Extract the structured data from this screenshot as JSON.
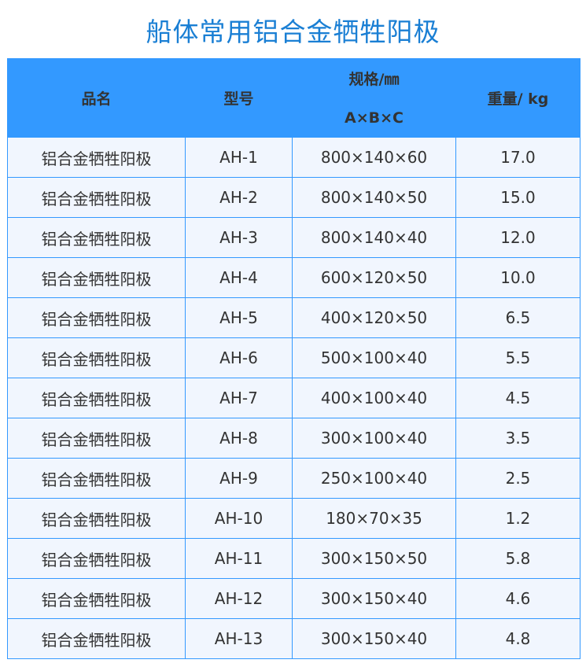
{
  "title": "船体常用铝合金牺牲阳极",
  "headers": {
    "name": "品名",
    "model": "型号",
    "spec": "规格/㎜",
    "spec_sub": "A×B×C",
    "weight": "重量/ kg"
  },
  "rows": [
    {
      "name": "铝合金牺牲阳极",
      "model": "AH-1",
      "spec": "800×140×60",
      "weight": "17.0"
    },
    {
      "name": "铝合金牺牲阳极",
      "model": "AH-2",
      "spec": "800×140×50",
      "weight": "15.0"
    },
    {
      "name": "铝合金牺牲阳极",
      "model": "AH-3",
      "spec": "800×140×40",
      "weight": "12.0"
    },
    {
      "name": "铝合金牺牲阳极",
      "model": "AH-4",
      "spec": "600×120×50",
      "weight": "10.0"
    },
    {
      "name": "铝合金牺牲阳极",
      "model": "AH-5",
      "spec": "400×120×50",
      "weight": "6.5"
    },
    {
      "name": "铝合金牺牲阳极",
      "model": "AH-6",
      "spec": "500×100×40",
      "weight": "5.5"
    },
    {
      "name": "铝合金牺牲阳极",
      "model": "AH-7",
      "spec": "400×100×40",
      "weight": "4.5"
    },
    {
      "name": "铝合金牺牲阳极",
      "model": "AH-8",
      "spec": "300×100×40",
      "weight": "3.5"
    },
    {
      "name": "铝合金牺牲阳极",
      "model": "AH-9",
      "spec": "250×100×40",
      "weight": "2.5"
    },
    {
      "name": "铝合金牺牲阳极",
      "model": "AH-10",
      "spec": "180×70×35",
      "weight": "1.2"
    },
    {
      "name": "铝合金牺牲阳极",
      "model": "AH-11",
      "spec": "300×150×50",
      "weight": "5.8"
    },
    {
      "name": "铝合金牺牲阳极",
      "model": "AH-12",
      "spec": "300×150×40",
      "weight": "4.6"
    },
    {
      "name": "铝合金牺牲阳极",
      "model": "AH-13",
      "spec": "300×150×40",
      "weight": "4.8"
    }
  ]
}
